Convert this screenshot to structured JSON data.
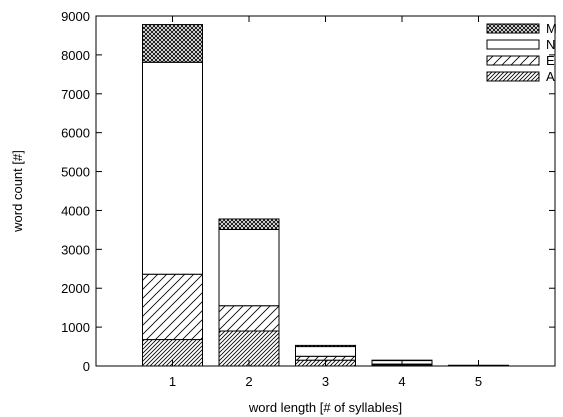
{
  "chart_data": {
    "type": "bar",
    "stacked": true,
    "title": "",
    "xlabel": "word length [# of syllables]",
    "ylabel": "word count [#]",
    "categories": [
      "1",
      "2",
      "3",
      "4",
      "5"
    ],
    "ylim": [
      0,
      9000
    ],
    "yticks": [
      "0",
      "1000",
      "2000",
      "3000",
      "4000",
      "5000",
      "6000",
      "7000",
      "8000",
      "9000"
    ],
    "grid": false,
    "legend_position": "top-right",
    "legend_order": [
      "M",
      "N",
      "E",
      "A"
    ],
    "series": [
      {
        "name": "A",
        "pattern": "dense-diagonal-hatch",
        "values": [
          680,
          900,
          150,
          30,
          5
        ]
      },
      {
        "name": "E",
        "pattern": "sparse-diagonal-hatch",
        "values": [
          1680,
          650,
          100,
          20,
          5
        ]
      },
      {
        "name": "N",
        "pattern": "white",
        "values": [
          5450,
          1960,
          250,
          90,
          5
        ]
      },
      {
        "name": "M",
        "pattern": "crosshatch",
        "values": [
          970,
          270,
          30,
          10,
          3
        ]
      }
    ]
  }
}
